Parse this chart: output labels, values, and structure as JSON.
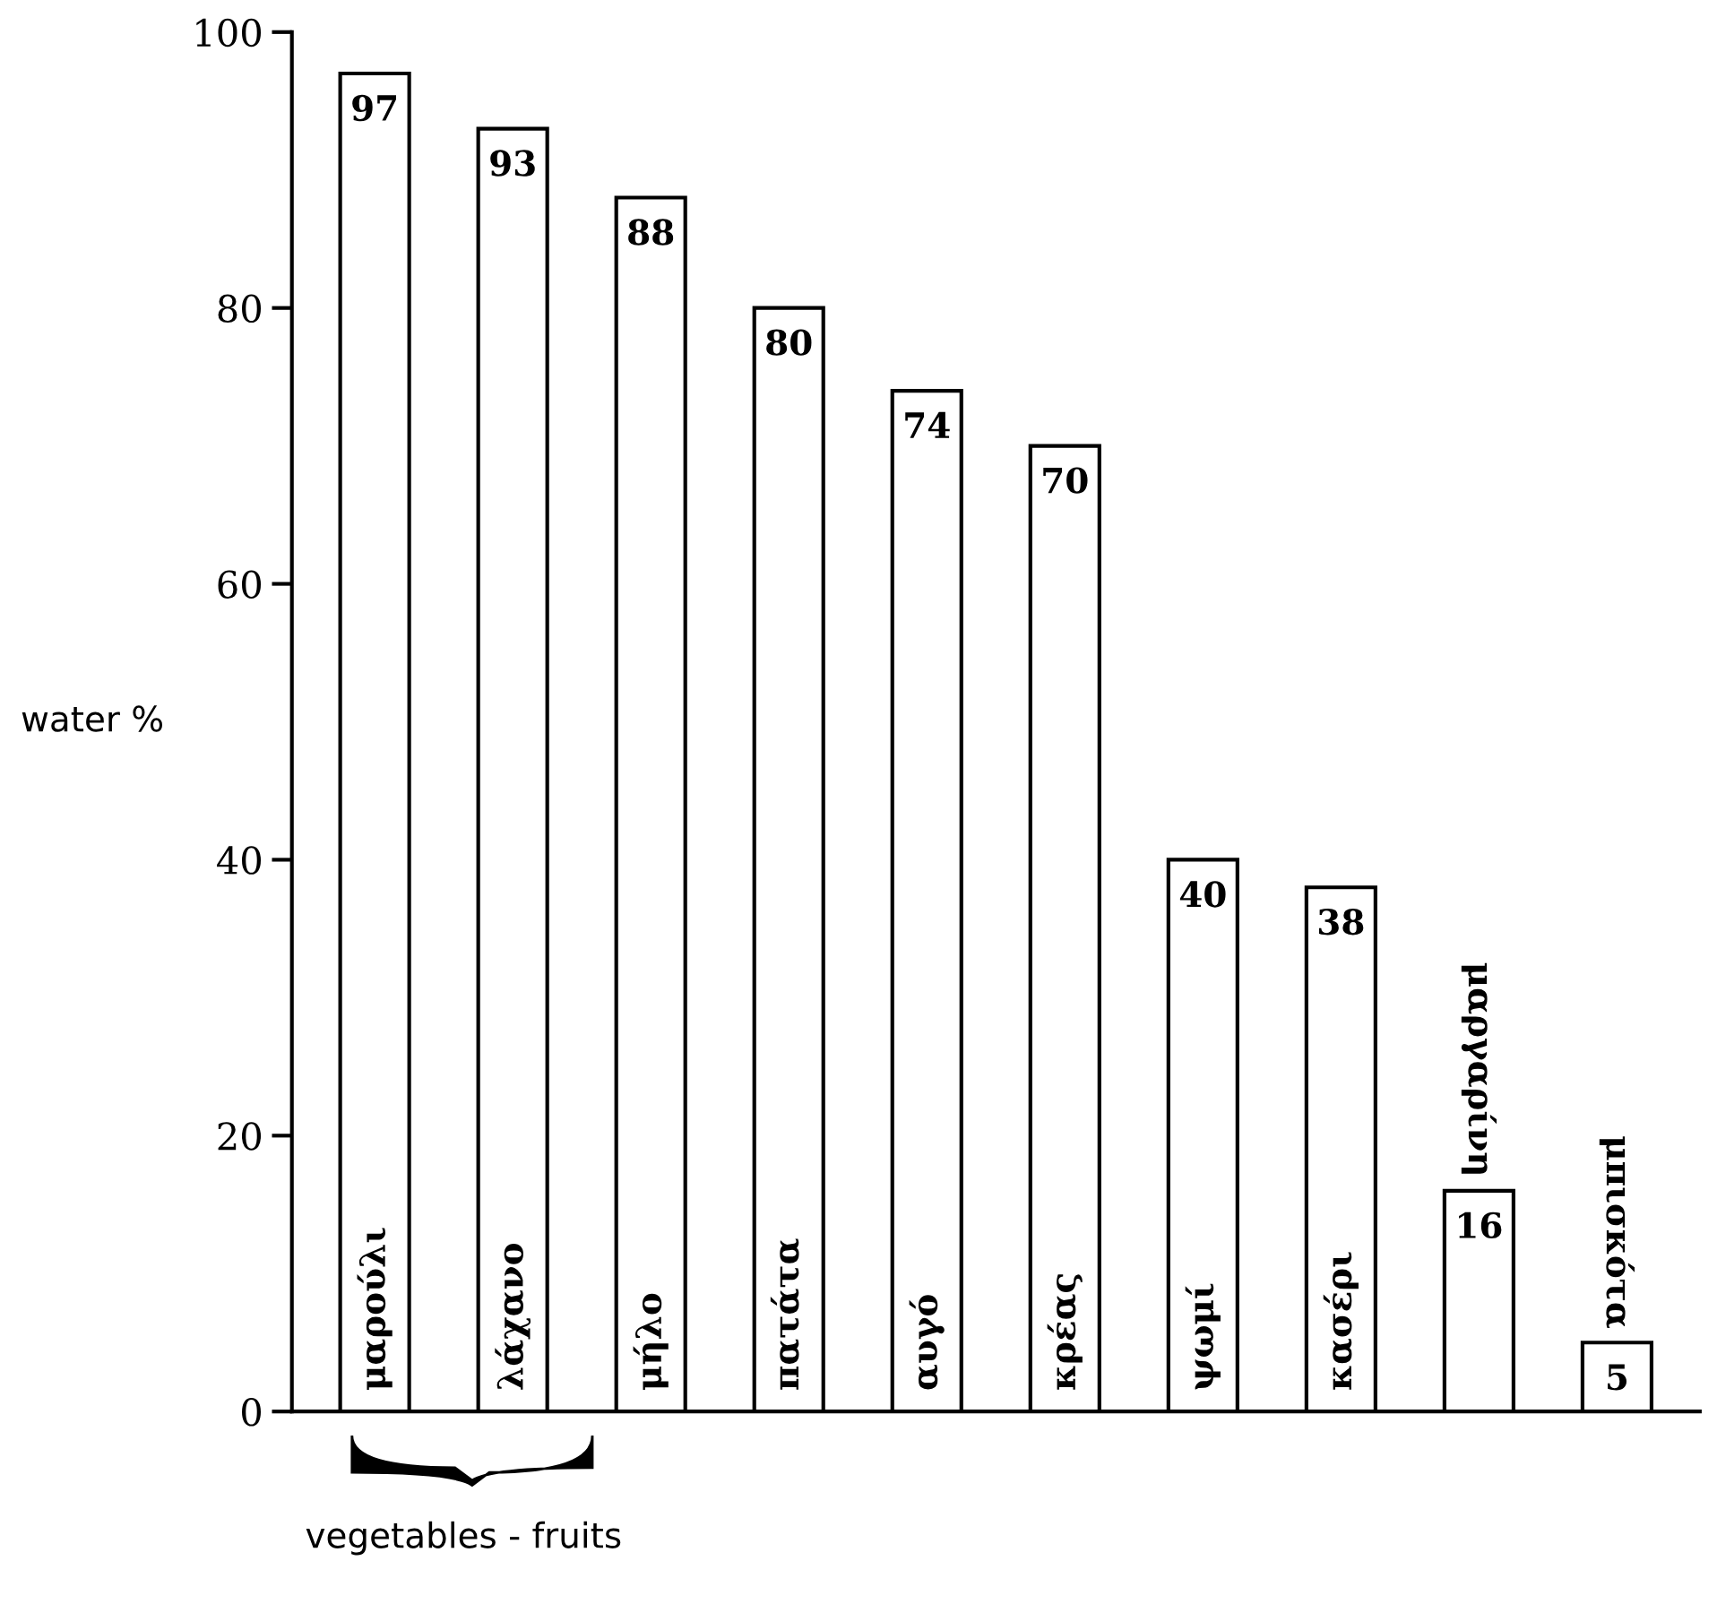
{
  "chart_data": {
    "type": "bar",
    "ylabel": "water %",
    "categories": [
      "μαρούλι",
      "λάχανο",
      "μήλο",
      "πατάτα",
      "αυγό",
      "κρέας",
      "ψωμί",
      "κασέρι",
      "μαργαρίνη",
      "μπισκότα"
    ],
    "values": [
      97,
      93,
      88,
      80,
      74,
      70,
      40,
      38,
      16,
      5
    ],
    "color": "#ffffff",
    "ylim": [
      0,
      100
    ],
    "yticks": [
      0,
      20,
      40,
      60,
      80,
      100
    ],
    "data_labels": true,
    "grid": false,
    "annotations": [
      "vegetables - fruits"
    ]
  }
}
